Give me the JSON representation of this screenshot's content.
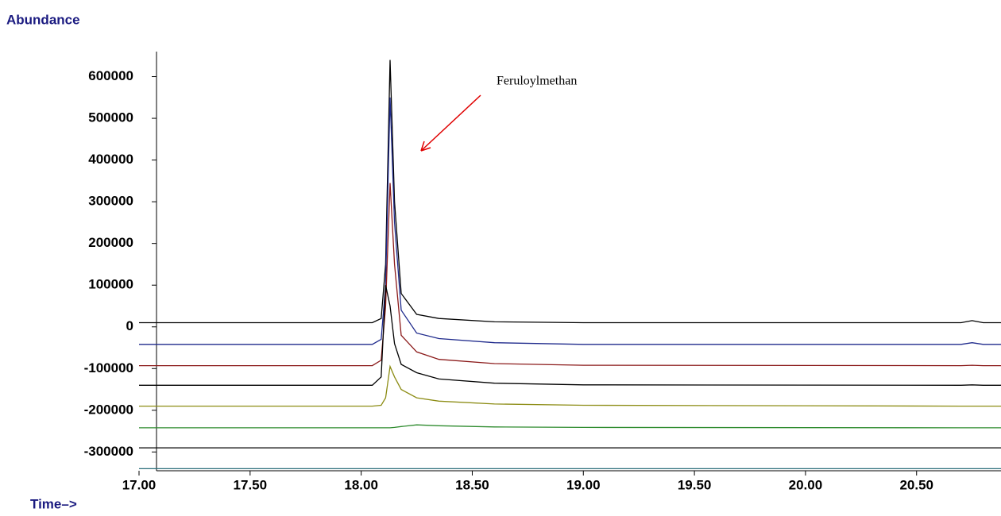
{
  "chart_data": {
    "type": "line",
    "y_label": "Abundance",
    "x_label": "Time–>",
    "annotation": "Feruloylmethan",
    "x": [
      17.0,
      18.05,
      18.09,
      18.11,
      18.13,
      18.15,
      18.18,
      18.25,
      18.35,
      18.6,
      19.0,
      20.7,
      20.75,
      20.8,
      20.88
    ],
    "series": [
      {
        "color": "#000000",
        "values": [
          10000,
          10000,
          20000,
          150000,
          640000,
          300000,
          80000,
          30000,
          20000,
          12000,
          10000,
          10000,
          15000,
          10000,
          10000
        ]
      },
      {
        "color": "#1f2a8c",
        "values": [
          -42000,
          -42000,
          -30000,
          100000,
          550000,
          250000,
          40000,
          -15000,
          -28000,
          -38000,
          -42000,
          -42000,
          -38000,
          -42000,
          -42000
        ]
      },
      {
        "color": "#8b1a1a",
        "values": [
          -93000,
          -93000,
          -80000,
          50000,
          345000,
          150000,
          -20000,
          -60000,
          -78000,
          -88000,
          -92000,
          -93000,
          -92000,
          -93000,
          -93000
        ]
      },
      {
        "color": "#000000",
        "values": [
          -140000,
          -140000,
          -120000,
          100000,
          50000,
          -40000,
          -90000,
          -110000,
          -125000,
          -135000,
          -139000,
          -140000,
          -139000,
          -140000,
          -140000
        ]
      },
      {
        "color": "#8c8c14",
        "values": [
          -190000,
          -190000,
          -188000,
          -170000,
          -95000,
          -120000,
          -150000,
          -170000,
          -178000,
          -185000,
          -188000,
          -190000,
          -190000,
          -190000,
          -190000
        ]
      },
      {
        "color": "#2e8b2e",
        "values": [
          -242000,
          -242000,
          -242000,
          -242000,
          -242000,
          -241000,
          -239000,
          -235000,
          -237000,
          -240000,
          -241000,
          -242000,
          -242000,
          -242000,
          -242000
        ]
      },
      {
        "color": "#000000",
        "values": [
          -290000,
          -290000,
          -290000,
          -290000,
          -290000,
          -290000,
          -290000,
          -290000,
          -290000,
          -290000,
          -290000,
          -290000,
          -290000,
          -290000,
          -290000
        ]
      },
      {
        "color": "#2a6f7a",
        "values": [
          -340000,
          -340000,
          -340000,
          -340000,
          -340000,
          -340000,
          -340000,
          -340000,
          -340000,
          -340000,
          -340000,
          -340000,
          -340000,
          -340000,
          -340000
        ]
      }
    ],
    "xlim": [
      17.0,
      20.88
    ],
    "ylim": [
      -345000,
      660000
    ],
    "xticks": [
      {
        "value": 17.0,
        "label": "17.00"
      },
      {
        "value": 17.5,
        "label": "17.50"
      },
      {
        "value": 18.0,
        "label": "18.00"
      },
      {
        "value": 18.5,
        "label": "18.50"
      },
      {
        "value": 19.0,
        "label": "19.00"
      },
      {
        "value": 19.5,
        "label": "19.50"
      },
      {
        "value": 20.0,
        "label": "20.00"
      },
      {
        "value": 20.5,
        "label": "20.50"
      }
    ],
    "yticks": [
      600000,
      500000,
      400000,
      300000,
      200000,
      100000,
      0,
      -100000,
      -200000,
      -300000
    ]
  }
}
